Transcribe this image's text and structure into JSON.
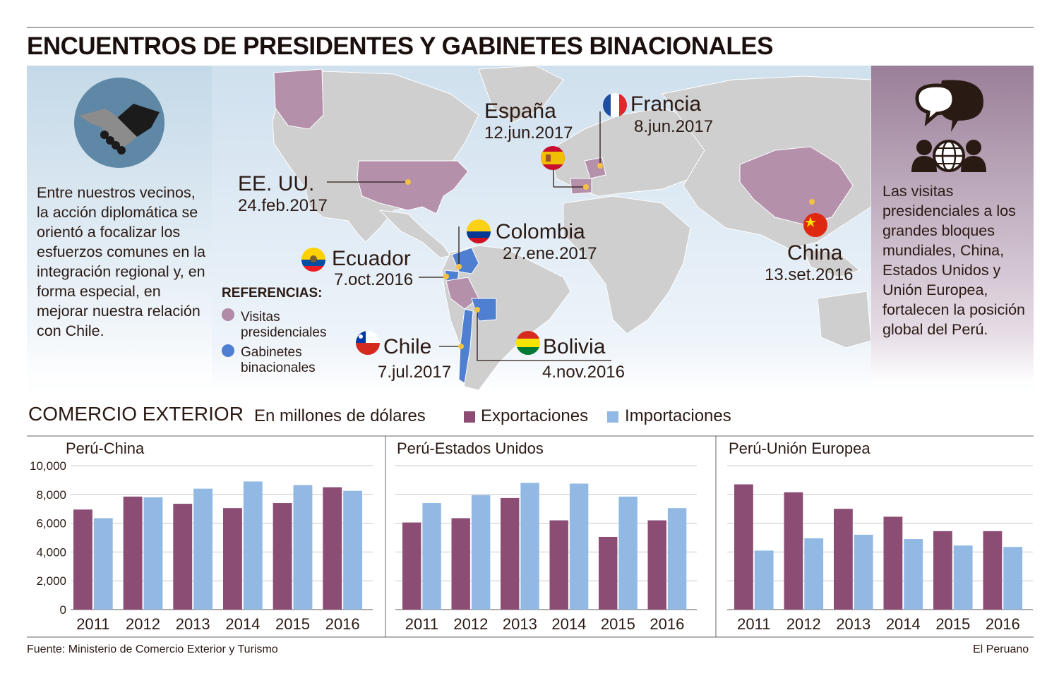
{
  "title": "ENCUENTROS DE PRESIDENTES Y GABINETES BINACIONALES",
  "left_panel": {
    "icon": "handshake-icon",
    "text": "Entre nuestros vecinos, la acción diplomática se orientó a focalizar los esfuerzos comunes en la integración regional y, en forma especial, en mejorar nuestra relación con Chile."
  },
  "right_panel": {
    "icon": "conversation-globe-icon",
    "text": "Las visitas presidenciales a los grandes bloques mundiales, China, Estados Unidos y Unión Europea, fortalecen la posición global del Perú."
  },
  "map": {
    "places": [
      {
        "name": "España",
        "date": "12.jun.2017",
        "type": "Visitas presidenciales"
      },
      {
        "name": "Francia",
        "date": "8.jun.2017",
        "type": "Visitas presidenciales"
      },
      {
        "name": "EE. UU.",
        "date": "24.feb.2017",
        "type": "Visitas presidenciales"
      },
      {
        "name": "Colombia",
        "date": "27.ene.2017",
        "type": "Gabinetes binacionales"
      },
      {
        "name": "Ecuador",
        "date": "7.oct.2016",
        "type": "Gabinetes binacionales"
      },
      {
        "name": "China",
        "date": "13.set.2016",
        "type": "Visitas presidenciales"
      },
      {
        "name": "Chile",
        "date": "7.jul.2017",
        "type": "Gabinetes binacionales"
      },
      {
        "name": "Bolivia",
        "date": "4.nov.2016",
        "type": "Gabinetes binacionales"
      }
    ],
    "references": {
      "title": "REFERENCIAS:",
      "items": [
        {
          "label_1": "Visitas",
          "label_2": "presidenciales",
          "color": "#b08aa6"
        },
        {
          "label_1": "Gabinetes",
          "label_2": "binacionales",
          "color": "#4f7fd0"
        }
      ]
    }
  },
  "trade": {
    "title": "COMERCIO EXTERIOR",
    "subtitle": "En millones de dólares",
    "legend": [
      {
        "label": "Exportaciones",
        "color": "#8b4d74"
      },
      {
        "label": "Importaciones",
        "color": "#92b9e4"
      }
    ]
  },
  "chart_data": [
    {
      "type": "bar",
      "title": "Perú-China",
      "categories": [
        "2011",
        "2012",
        "2013",
        "2014",
        "2015",
        "2016"
      ],
      "series": [
        {
          "name": "Exportaciones",
          "values": [
            6950,
            7850,
            7350,
            7050,
            7400,
            8500
          ]
        },
        {
          "name": "Importaciones",
          "values": [
            6350,
            7800,
            8400,
            8900,
            8650,
            8250
          ]
        }
      ],
      "ylim": [
        0,
        10000
      ],
      "yticks": [
        "10,000",
        "8,000",
        "6,000",
        "4,000",
        "2,000",
        "0"
      ]
    },
    {
      "type": "bar",
      "title": "Perú-Estados Unidos",
      "categories": [
        "2011",
        "2012",
        "2013",
        "2014",
        "2015",
        "2016"
      ],
      "series": [
        {
          "name": "Exportaciones",
          "values": [
            6050,
            6350,
            7750,
            6200,
            5050,
            6200
          ]
        },
        {
          "name": "Importaciones",
          "values": [
            7400,
            7950,
            8800,
            8750,
            7850,
            7050
          ]
        }
      ],
      "ylim": [
        0,
        10000
      ]
    },
    {
      "type": "bar",
      "title": "Perú-Unión Europea",
      "categories": [
        "2011",
        "2012",
        "2013",
        "2014",
        "2015",
        "2016"
      ],
      "series": [
        {
          "name": "Exportaciones",
          "values": [
            8700,
            8150,
            7000,
            6450,
            5450,
            5450
          ]
        },
        {
          "name": "Importaciones",
          "values": [
            4100,
            4950,
            5200,
            4900,
            4450,
            4350
          ]
        }
      ],
      "ylim": [
        0,
        10000
      ]
    }
  ],
  "footer": {
    "source": "Fuente: Ministerio de Comercio Exterior y Turismo",
    "publisher": "El Peruano"
  }
}
